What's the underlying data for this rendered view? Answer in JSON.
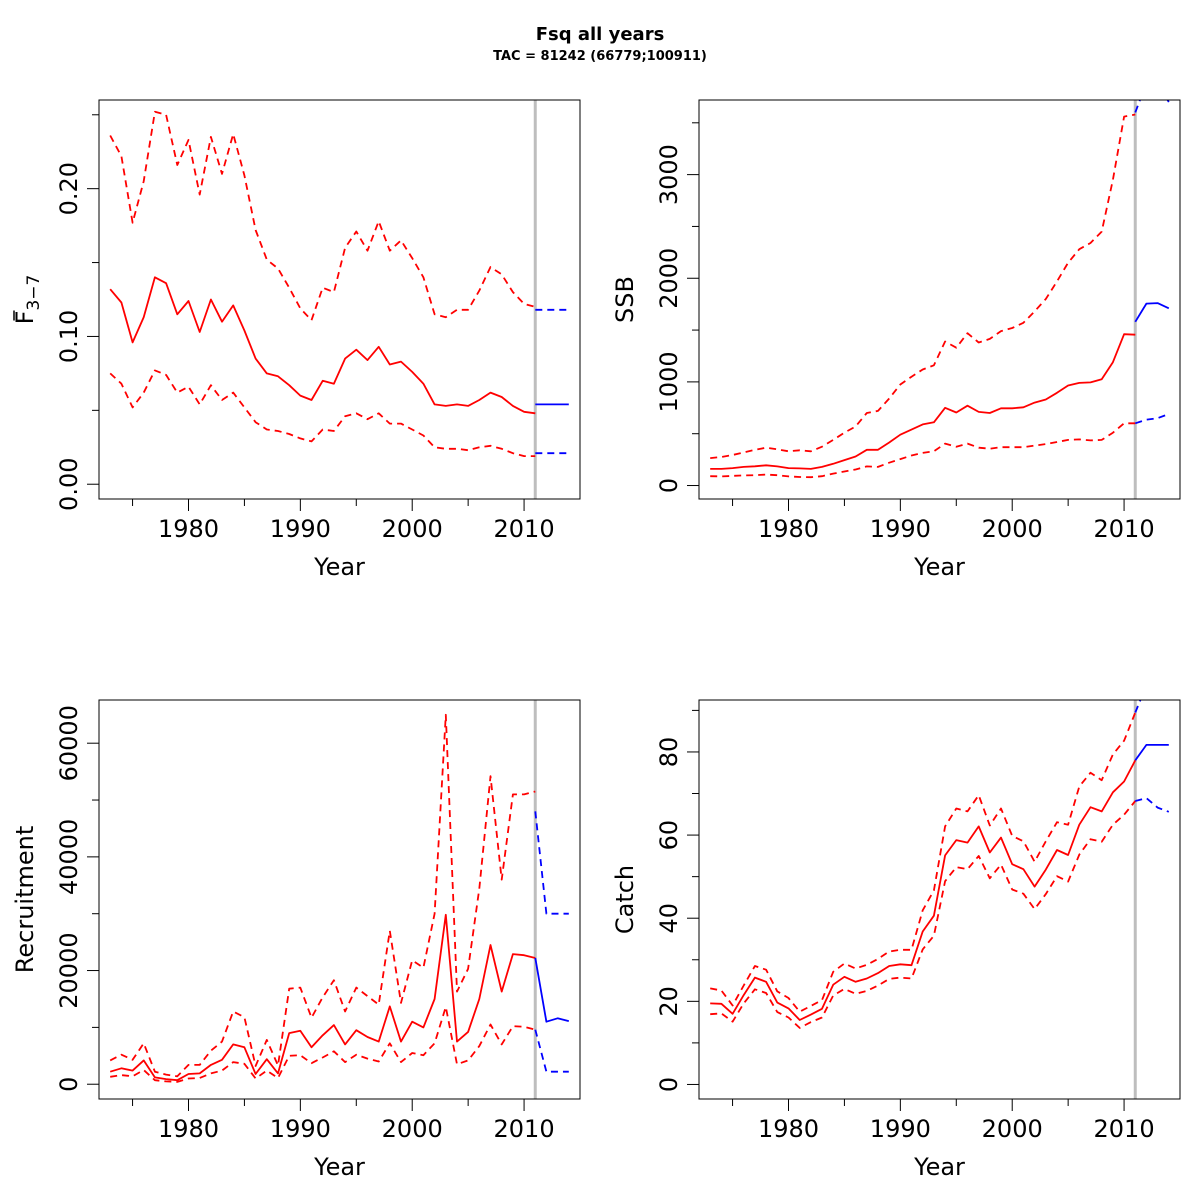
{
  "title": "Fsq all years",
  "subtitle": "TAC = 81242 (66779;100911)",
  "colors": {
    "estimate": "#ff0000",
    "forecast": "#0000ff",
    "divider": "#bebebe"
  },
  "chart_data": [
    {
      "id": "fbar",
      "type": "line",
      "xlabel": "Year",
      "ylabel_main": "F",
      "ylabel_sub": "3−7",
      "xlim": [
        1972,
        2015
      ],
      "ylim": [
        -0.01,
        0.26
      ],
      "xticks": [
        "1980",
        "1990",
        "2000",
        "2010"
      ],
      "yticks": [
        "0.00",
        "0.10",
        "0.20"
      ],
      "ytick_values": [
        0,
        0.05,
        0.1,
        0.15,
        0.2,
        0.25
      ],
      "ytick_labeled": [
        0,
        0.1,
        0.2
      ],
      "divider_year": 2011,
      "x": [
        1973,
        1974,
        1975,
        1976,
        1977,
        1978,
        1979,
        1980,
        1981,
        1982,
        1983,
        1984,
        1985,
        1986,
        1987,
        1988,
        1989,
        1990,
        1991,
        1992,
        1993,
        1994,
        1995,
        1996,
        1997,
        1998,
        1999,
        2000,
        2001,
        2002,
        2003,
        2004,
        2005,
        2006,
        2007,
        2008,
        2009,
        2010,
        2011
      ],
      "series": [
        {
          "role": "estimate",
          "values": [
            0.132,
            0.123,
            0.096,
            0.113,
            0.14,
            0.136,
            0.115,
            0.124,
            0.103,
            0.125,
            0.11,
            0.121,
            0.104,
            0.085,
            0.075,
            0.073,
            0.067,
            0.06,
            0.057,
            0.07,
            0.068,
            0.085,
            0.091,
            0.084,
            0.093,
            0.081,
            0.083,
            0.076,
            0.068,
            0.054,
            0.053,
            0.054,
            0.053,
            0.057,
            0.062,
            0.059,
            0.053,
            0.049,
            0.048
          ]
        },
        {
          "role": "upper",
          "values": [
            0.236,
            0.222,
            0.177,
            0.205,
            0.252,
            0.25,
            0.216,
            0.233,
            0.196,
            0.235,
            0.21,
            0.237,
            0.209,
            0.172,
            0.152,
            0.146,
            0.133,
            0.119,
            0.111,
            0.133,
            0.13,
            0.16,
            0.171,
            0.158,
            0.178,
            0.158,
            0.165,
            0.153,
            0.14,
            0.115,
            0.113,
            0.118,
            0.118,
            0.131,
            0.147,
            0.142,
            0.13,
            0.122,
            0.12
          ]
        },
        {
          "role": "lower",
          "values": [
            0.075,
            0.068,
            0.052,
            0.062,
            0.077,
            0.074,
            0.062,
            0.066,
            0.054,
            0.067,
            0.057,
            0.062,
            0.052,
            0.042,
            0.037,
            0.036,
            0.034,
            0.031,
            0.029,
            0.037,
            0.036,
            0.046,
            0.048,
            0.044,
            0.048,
            0.041,
            0.041,
            0.037,
            0.033,
            0.025,
            0.024,
            0.024,
            0.023,
            0.025,
            0.026,
            0.024,
            0.021,
            0.019,
            0.019
          ]
        }
      ],
      "forecast": {
        "x": [
          2011,
          2012,
          2013,
          2014
        ],
        "estimate": [
          0.054,
          0.054,
          0.054,
          0.054
        ],
        "upper": [
          0.118,
          0.118,
          0.118,
          0.118
        ],
        "lower": [
          0.021,
          0.021,
          0.021,
          0.021
        ]
      }
    },
    {
      "id": "ssb",
      "type": "line",
      "xlabel": "Year",
      "ylabel": "SSB",
      "xlim": [
        1972,
        2015
      ],
      "ylim": [
        -130,
        3720
      ],
      "xticks": [
        "1980",
        "1990",
        "2000",
        "2010"
      ],
      "yticks": [
        "0",
        "1000",
        "2000",
        "3000"
      ],
      "ytick_values": [
        0,
        500,
        1000,
        1500,
        2000,
        2500,
        3000,
        3500
      ],
      "ytick_labeled": [
        0,
        1000,
        2000,
        3000
      ],
      "divider_year": 2011,
      "x": [
        1973,
        1974,
        1975,
        1976,
        1977,
        1978,
        1979,
        1980,
        1981,
        1982,
        1983,
        1984,
        1985,
        1986,
        1987,
        1988,
        1989,
        1990,
        1991,
        1992,
        1993,
        1994,
        1995,
        1996,
        1997,
        1998,
        1999,
        2000,
        2001,
        2002,
        2003,
        2004,
        2005,
        2006,
        2007,
        2008,
        2009,
        2010,
        2011
      ],
      "series": [
        {
          "role": "estimate",
          "values": [
            160,
            160,
            168,
            180,
            186,
            195,
            185,
            168,
            165,
            160,
            180,
            210,
            245,
            280,
            345,
            345,
            415,
            490,
            540,
            590,
            610,
            750,
            705,
            770,
            710,
            700,
            745,
            745,
            755,
            800,
            830,
            895,
            965,
            990,
            995,
            1025,
            1190,
            1460,
            1455
          ]
        },
        {
          "role": "upper",
          "values": [
            265,
            275,
            295,
            320,
            345,
            365,
            350,
            330,
            340,
            330,
            375,
            440,
            510,
            570,
            700,
            720,
            840,
            975,
            1050,
            1120,
            1160,
            1390,
            1330,
            1470,
            1380,
            1415,
            1490,
            1520,
            1570,
            1680,
            1800,
            1970,
            2150,
            2280,
            2340,
            2450,
            2950,
            3560,
            3580
          ]
        },
        {
          "role": "lower",
          "values": [
            90,
            88,
            93,
            98,
            100,
            105,
            100,
            88,
            82,
            80,
            90,
            115,
            135,
            155,
            185,
            180,
            220,
            255,
            290,
            315,
            330,
            405,
            375,
            405,
            365,
            355,
            370,
            370,
            370,
            385,
            400,
            420,
            440,
            445,
            435,
            440,
            510,
            600,
            600
          ]
        }
      ],
      "forecast": {
        "x": [
          2011,
          2012,
          2013,
          2014
        ],
        "estimate": [
          1580,
          1755,
          1760,
          1710
        ],
        "upper": [
          3600,
          3880,
          3880,
          3700
        ],
        "lower": [
          600,
          635,
          650,
          690
        ]
      }
    },
    {
      "id": "recruitment",
      "type": "line",
      "xlabel": "Year",
      "ylabel": "Recruitment",
      "xlim": [
        1972,
        2015
      ],
      "ylim": [
        -2600,
        67600
      ],
      "xticks": [
        "1980",
        "1990",
        "2000",
        "2010"
      ],
      "yticks": [
        "0",
        "20000",
        "40000",
        "60000"
      ],
      "ytick_values": [
        0,
        10000,
        20000,
        30000,
        40000,
        50000,
        60000
      ],
      "ytick_labeled": [
        0,
        20000,
        40000,
        60000
      ],
      "divider_year": 2011,
      "x": [
        1973,
        1974,
        1975,
        1976,
        1977,
        1978,
        1979,
        1980,
        1981,
        1982,
        1983,
        1984,
        1985,
        1986,
        1987,
        1988,
        1989,
        1990,
        1991,
        1992,
        1993,
        1994,
        1995,
        1996,
        1997,
        1998,
        1999,
        2000,
        2001,
        2002,
        2003,
        2004,
        2005,
        2006,
        2007,
        2008,
        2009,
        2010,
        2011
      ],
      "series": [
        {
          "role": "estimate",
          "values": [
            2200,
            2800,
            2400,
            4200,
            1200,
            900,
            700,
            1800,
            1900,
            3400,
            4300,
            7000,
            6500,
            1800,
            4400,
            1900,
            9000,
            9400,
            6500,
            8600,
            10400,
            7000,
            9500,
            8300,
            7500,
            13700,
            7500,
            11000,
            10000,
            15000,
            29800,
            7500,
            9200,
            15000,
            24500,
            16300,
            22900,
            22700,
            22200
          ]
        },
        {
          "role": "upper",
          "values": [
            4200,
            5200,
            4300,
            7200,
            2200,
            1700,
            1400,
            3400,
            3400,
            5900,
            7500,
            12800,
            11800,
            3200,
            7800,
            3300,
            16800,
            17000,
            11700,
            15300,
            18300,
            12800,
            17000,
            15500,
            14000,
            27000,
            14300,
            21800,
            20500,
            30000,
            65000,
            16300,
            20300,
            34400,
            54200,
            36000,
            51000,
            51000,
            51500
          ]
        },
        {
          "role": "lower",
          "values": [
            1300,
            1600,
            1400,
            2500,
            700,
            500,
            400,
            1000,
            1100,
            1900,
            2400,
            3900,
            3600,
            1000,
            2400,
            1100,
            5000,
            5100,
            3700,
            4700,
            5800,
            3900,
            5200,
            4500,
            4000,
            7200,
            3900,
            5500,
            5100,
            7200,
            13600,
            3500,
            4200,
            6700,
            10500,
            7000,
            10200,
            10100,
            9600
          ]
        }
      ],
      "forecast": {
        "x": [
          2011,
          2012,
          2013,
          2014
        ],
        "estimate": [
          22200,
          11000,
          11600,
          11100
        ],
        "upper": [
          48000,
          30000,
          30000,
          30000
        ],
        "lower": [
          9600,
          2200,
          2200,
          2200
        ]
      }
    },
    {
      "id": "catch",
      "type": "line",
      "xlabel": "Year",
      "ylabel": "Catch",
      "xlim": [
        1972,
        2015
      ],
      "ylim": [
        -3.5,
        92.5
      ],
      "xticks": [
        "1980",
        "1990",
        "2000",
        "2010"
      ],
      "yticks": [
        "0",
        "20",
        "40",
        "60",
        "80"
      ],
      "ytick_values": [
        0,
        10,
        20,
        30,
        40,
        50,
        60,
        70,
        80,
        90
      ],
      "ytick_labeled": [
        0,
        20,
        40,
        60,
        80
      ],
      "divider_year": 2011,
      "x": [
        1973,
        1974,
        1975,
        1976,
        1977,
        1978,
        1979,
        1980,
        1981,
        1982,
        1983,
        1984,
        1985,
        1986,
        1987,
        1988,
        1989,
        1990,
        1991,
        1992,
        1993,
        1994,
        1995,
        1996,
        1997,
        1998,
        1999,
        2000,
        2001,
        2002,
        2003,
        2004,
        2005,
        2006,
        2007,
        2008,
        2009,
        2010,
        2011
      ],
      "series": [
        {
          "role": "estimate",
          "values": [
            19.5,
            19.4,
            17.0,
            21.5,
            25.7,
            24.7,
            19.7,
            18.3,
            15.5,
            16.8,
            18.2,
            24.0,
            25.9,
            24.7,
            25.5,
            26.8,
            28.5,
            28.9,
            28.7,
            36.8,
            40.6,
            55.1,
            58.8,
            58.2,
            62.1,
            55.8,
            59.4,
            53.0,
            51.8,
            47.6,
            51.7,
            56.4,
            55.2,
            62.5,
            66.7,
            65.7,
            70.3,
            72.9,
            78.0
          ]
        },
        {
          "role": "upper",
          "values": [
            23.1,
            22.6,
            19.0,
            23.8,
            28.5,
            27.6,
            22.4,
            20.8,
            17.5,
            18.9,
            20.3,
            27.1,
            29.1,
            27.9,
            28.8,
            30.2,
            32.0,
            32.4,
            32.4,
            41.9,
            46.7,
            62.1,
            66.4,
            65.7,
            69.6,
            62.3,
            66.4,
            59.8,
            58.5,
            53.6,
            58.5,
            63.1,
            62.5,
            71.7,
            75.0,
            73.2,
            79.4,
            82.7,
            89.5
          ]
        },
        {
          "role": "lower",
          "values": [
            16.9,
            17.1,
            15.1,
            19.5,
            22.9,
            22.0,
            17.4,
            16.1,
            13.6,
            15.0,
            16.1,
            21.4,
            23.0,
            21.8,
            22.5,
            23.8,
            25.4,
            25.7,
            25.5,
            32.5,
            35.8,
            48.9,
            52.3,
            51.8,
            55.0,
            49.6,
            52.9,
            46.9,
            45.9,
            42.2,
            45.8,
            50.1,
            48.8,
            55.3,
            59.0,
            58.4,
            62.5,
            64.9,
            68.2
          ]
        }
      ],
      "forecast": {
        "x": [
          2011,
          2012,
          2013,
          2014
        ],
        "estimate": [
          78.0,
          81.7,
          81.7,
          81.7
        ],
        "upper": [
          89.5,
          96.0,
          96.0,
          96.0
        ],
        "lower": [
          68.2,
          68.9,
          66.6,
          65.6
        ]
      }
    }
  ]
}
